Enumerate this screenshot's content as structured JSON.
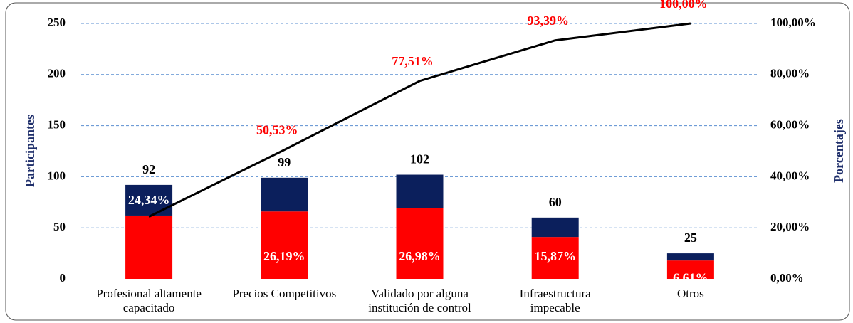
{
  "chart_data": {
    "type": "pareto",
    "categories": [
      [
        "Profesional altamente",
        "capacitado"
      ],
      [
        "Precios Competitivos"
      ],
      [
        "Validado por alguna",
        "institución de control"
      ],
      [
        "Infraestructura",
        "impecable"
      ],
      [
        "Otros"
      ]
    ],
    "series": [
      {
        "color": "#ff0000",
        "values": [
          62,
          66,
          69,
          41,
          18
        ]
      },
      {
        "color": "#0b1f5c",
        "values": [
          30,
          33,
          33,
          19,
          7
        ]
      }
    ],
    "totals": [
      92,
      99,
      102,
      60,
      25
    ],
    "shares": {
      "values": [
        24.34,
        26.19,
        26.98,
        15.87,
        6.61
      ],
      "value_labels": [
        "24,34%",
        "26,19%",
        "26,98%",
        "15,87%",
        "6,61%"
      ]
    },
    "line": {
      "axis": "y2",
      "color": "#000000",
      "values": [
        24.34,
        50.53,
        77.51,
        93.39,
        100
      ],
      "value_labels": [
        null,
        "50,53%",
        "77,51%",
        "93,39%",
        "100,00%"
      ]
    },
    "ylabel": "Participantes",
    "y2label": "Porcentajes",
    "ylim": [
      0,
      250
    ],
    "yticks": [
      0,
      50,
      100,
      150,
      200,
      250
    ],
    "y2lim": [
      0,
      100
    ],
    "y2ticks": [
      {
        "value": 0,
        "label": "0,00%"
      },
      {
        "value": 20,
        "label": "20,00%"
      },
      {
        "value": 40,
        "label": "40,00%"
      },
      {
        "value": 60,
        "label": "60,00%"
      },
      {
        "value": 80,
        "label": "80,00%"
      },
      {
        "value": 100,
        "label": "100,00%"
      }
    ],
    "grid": true
  }
}
